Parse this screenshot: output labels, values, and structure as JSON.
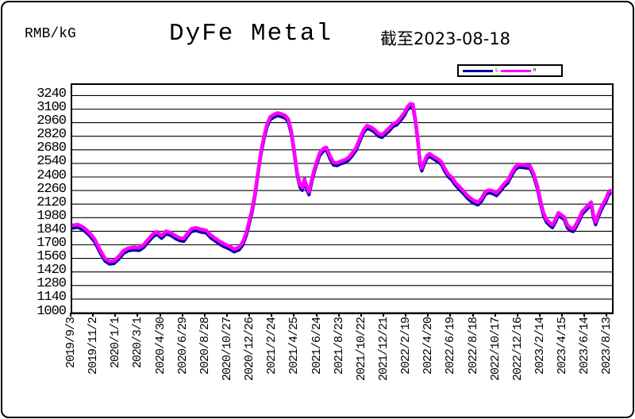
{
  "header": {
    "unit": "RMB/kG",
    "title": "DyFe Metal",
    "asof": "截至2023-08-18"
  },
  "legend": {
    "series1_label": "L",
    "series2_label": "H"
  },
  "chart_data": {
    "type": "line",
    "title": "DyFe Metal",
    "ylabel": "RMB/kG",
    "subtitle": "截至2023-08-18",
    "grid": "horizontal-only",
    "legend_position": "top-right",
    "ylim": [
      1000,
      3350
    ],
    "ytick_step": 140,
    "yticks": [
      3240,
      3100,
      2960,
      2820,
      2680,
      2540,
      2400,
      2260,
      2120,
      1980,
      1840,
      1700,
      1560,
      1420,
      1280,
      1140,
      1000
    ],
    "xticks": [
      "2019/9/3",
      "2019/11/2",
      "2020/1/1",
      "2020/3/1",
      "2020/4/30",
      "2020/6/29",
      "2020/8/28",
      "2020/10/27",
      "2020/12/26",
      "2021/2/24",
      "2021/4/25",
      "2021/6/24",
      "2021/8/23",
      "2021/10/22",
      "2021/12/21",
      "2022/2/19",
      "2022/4/20",
      "2022/6/19",
      "2022/8/18",
      "2022/10/17",
      "2022/12/16",
      "2023/2/14",
      "2023/4/15",
      "2023/6/14",
      "2023/8/13"
    ],
    "xtick_interval_days": 60,
    "x_span_days": 1450,
    "series": [
      {
        "name": "L",
        "color": "#000099",
        "stroke_width": 4.0,
        "value_offset": -28
      },
      {
        "name": "H",
        "color": "#FF00FF",
        "stroke_width": 4.5,
        "value_offset": 0
      }
    ],
    "points_day_value": [
      [
        0,
        1900
      ],
      [
        15,
        1910
      ],
      [
        30,
        1880
      ],
      [
        45,
        1830
      ],
      [
        60,
        1760
      ],
      [
        75,
        1645
      ],
      [
        88,
        1560
      ],
      [
        100,
        1530
      ],
      [
        112,
        1535
      ],
      [
        125,
        1580
      ],
      [
        138,
        1640
      ],
      [
        150,
        1665
      ],
      [
        165,
        1675
      ],
      [
        180,
        1670
      ],
      [
        192,
        1700
      ],
      [
        205,
        1760
      ],
      [
        218,
        1815
      ],
      [
        228,
        1835
      ],
      [
        240,
        1795
      ],
      [
        252,
        1840
      ],
      [
        265,
        1825
      ],
      [
        278,
        1790
      ],
      [
        290,
        1770
      ],
      [
        300,
        1765
      ],
      [
        310,
        1820
      ],
      [
        320,
        1865
      ],
      [
        333,
        1875
      ],
      [
        345,
        1860
      ],
      [
        360,
        1850
      ],
      [
        372,
        1800
      ],
      [
        385,
        1765
      ],
      [
        398,
        1730
      ],
      [
        410,
        1705
      ],
      [
        422,
        1685
      ],
      [
        435,
        1655
      ],
      [
        448,
        1675
      ],
      [
        458,
        1725
      ],
      [
        468,
        1830
      ],
      [
        476,
        1950
      ],
      [
        484,
        2080
      ],
      [
        492,
        2250
      ],
      [
        500,
        2480
      ],
      [
        508,
        2680
      ],
      [
        516,
        2830
      ],
      [
        524,
        2950
      ],
      [
        532,
        3020
      ],
      [
        542,
        3045
      ],
      [
        552,
        3060
      ],
      [
        562,
        3050
      ],
      [
        572,
        3035
      ],
      [
        580,
        3000
      ],
      [
        588,
        2880
      ],
      [
        596,
        2680
      ],
      [
        604,
        2450
      ],
      [
        612,
        2320
      ],
      [
        618,
        2290
      ],
      [
        624,
        2380
      ],
      [
        630,
        2300
      ],
      [
        636,
        2245
      ],
      [
        645,
        2400
      ],
      [
        655,
        2540
      ],
      [
        665,
        2650
      ],
      [
        675,
        2695
      ],
      [
        683,
        2705
      ],
      [
        692,
        2620
      ],
      [
        702,
        2550
      ],
      [
        712,
        2545
      ],
      [
        722,
        2565
      ],
      [
        732,
        2575
      ],
      [
        742,
        2600
      ],
      [
        752,
        2645
      ],
      [
        762,
        2700
      ],
      [
        772,
        2790
      ],
      [
        782,
        2880
      ],
      [
        792,
        2930
      ],
      [
        802,
        2915
      ],
      [
        812,
        2890
      ],
      [
        822,
        2850
      ],
      [
        832,
        2835
      ],
      [
        842,
        2870
      ],
      [
        852,
        2905
      ],
      [
        862,
        2950
      ],
      [
        872,
        2965
      ],
      [
        882,
        3010
      ],
      [
        892,
        3060
      ],
      [
        900,
        3120
      ],
      [
        908,
        3155
      ],
      [
        915,
        3150
      ],
      [
        922,
        2990
      ],
      [
        928,
        2800
      ],
      [
        934,
        2560
      ],
      [
        939,
        2490
      ],
      [
        946,
        2560
      ],
      [
        953,
        2620
      ],
      [
        960,
        2640
      ],
      [
        968,
        2620
      ],
      [
        976,
        2600
      ],
      [
        984,
        2580
      ],
      [
        992,
        2555
      ],
      [
        1000,
        2490
      ],
      [
        1010,
        2430
      ],
      [
        1020,
        2395
      ],
      [
        1030,
        2340
      ],
      [
        1040,
        2300
      ],
      [
        1050,
        2260
      ],
      [
        1060,
        2215
      ],
      [
        1070,
        2180
      ],
      [
        1080,
        2155
      ],
      [
        1090,
        2140
      ],
      [
        1100,
        2180
      ],
      [
        1110,
        2250
      ],
      [
        1120,
        2265
      ],
      [
        1130,
        2255
      ],
      [
        1140,
        2235
      ],
      [
        1150,
        2280
      ],
      [
        1160,
        2330
      ],
      [
        1170,
        2365
      ],
      [
        1180,
        2440
      ],
      [
        1190,
        2505
      ],
      [
        1200,
        2530
      ],
      [
        1210,
        2525
      ],
      [
        1220,
        2520
      ],
      [
        1230,
        2515
      ],
      [
        1240,
        2430
      ],
      [
        1250,
        2300
      ],
      [
        1258,
        2150
      ],
      [
        1266,
        2030
      ],
      [
        1274,
        1960
      ],
      [
        1282,
        1930
      ],
      [
        1290,
        1905
      ],
      [
        1298,
        1960
      ],
      [
        1306,
        2030
      ],
      [
        1314,
        2010
      ],
      [
        1322,
        1985
      ],
      [
        1330,
        1905
      ],
      [
        1338,
        1875
      ],
      [
        1346,
        1865
      ],
      [
        1354,
        1915
      ],
      [
        1362,
        1975
      ],
      [
        1370,
        2045
      ],
      [
        1378,
        2075
      ],
      [
        1386,
        2110
      ],
      [
        1394,
        2140
      ],
      [
        1400,
        2010
      ],
      [
        1406,
        1935
      ],
      [
        1413,
        2010
      ],
      [
        1420,
        2075
      ],
      [
        1427,
        2130
      ],
      [
        1434,
        2175
      ],
      [
        1440,
        2235
      ],
      [
        1445,
        2260
      ]
    ]
  }
}
